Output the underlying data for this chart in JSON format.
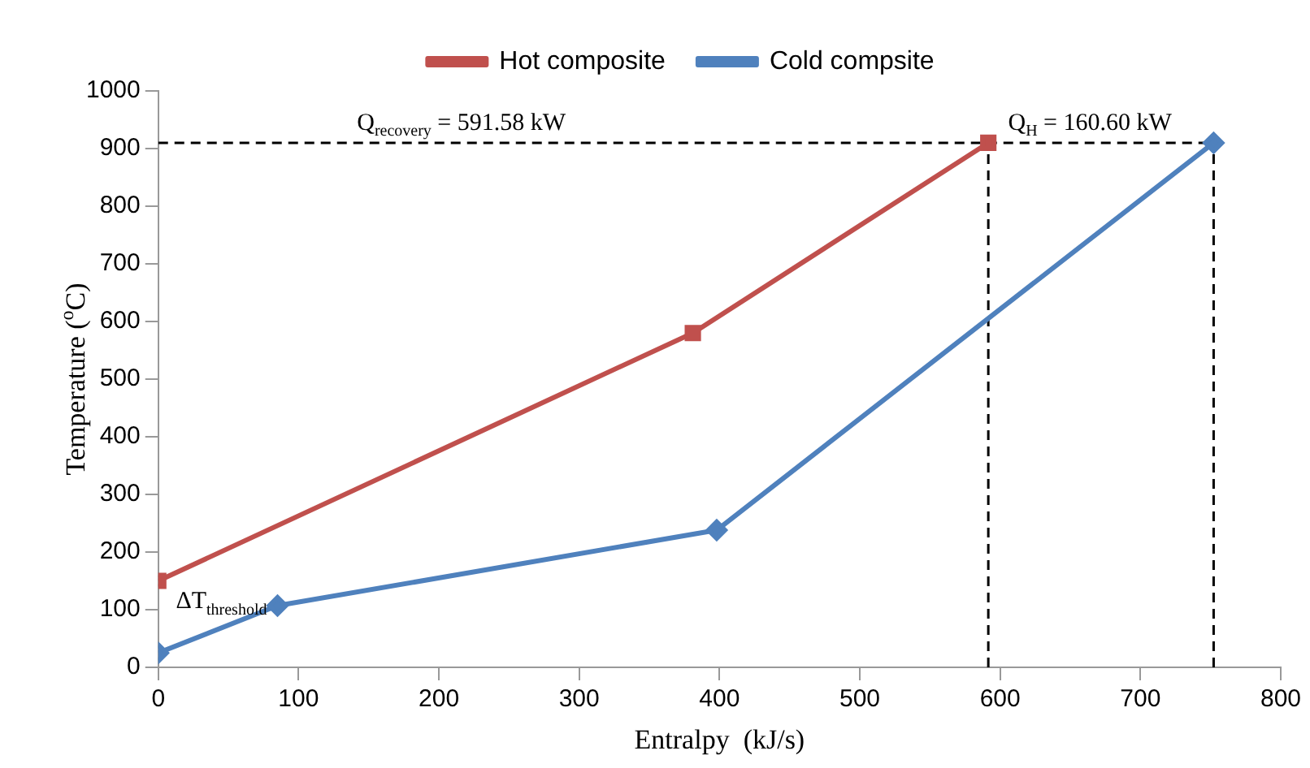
{
  "chart_data": {
    "type": "line",
    "xlabel": "Entralpy  (kJ/s)",
    "ylabel": "Temperature ($^{o}$C)",
    "xlim": [
      0,
      800
    ],
    "xticks": [
      0,
      100,
      200,
      300,
      400,
      500,
      600,
      700,
      800
    ],
    "ylim": [
      0,
      1000
    ],
    "yticks": [
      0,
      100,
      200,
      300,
      400,
      500,
      600,
      700,
      800,
      900,
      1000
    ],
    "legend": "top",
    "series": [
      {
        "name": "Hot composite",
        "color": "#c0504d",
        "marker": "square",
        "x": [
          0,
          381,
          591.58
        ],
        "values": [
          150,
          580,
          910
        ]
      },
      {
        "name": "Cold compsite",
        "color": "#4f81bd",
        "marker": "diamond",
        "x": [
          0,
          85,
          398,
          752.18
        ],
        "values": [
          25,
          107,
          238,
          910
        ]
      },
      {
        "color": "#000000",
        "marker": "none",
        "line_style": "dashed",
        "x": [
          0,
          752.18
        ],
        "values": [
          910,
          910
        ]
      },
      {
        "color": "#000000",
        "marker": "none",
        "line_style": "dashed",
        "x": [
          591.58,
          591.58
        ],
        "values": [
          0,
          910
        ]
      },
      {
        "color": "#000000",
        "marker": "none",
        "line_style": "dashed",
        "x": [
          752.18,
          752.18
        ],
        "values": [
          0,
          910
        ]
      }
    ],
    "annotations": [
      {
        "text": "Q$_{recovery}$ = 591.58 kW",
        "x": 216,
        "y": 910
      },
      {
        "text": "Q$_{H}$ = 160.60 kW",
        "x": 664,
        "y": 910
      },
      {
        "text": "ΔT$_{threshold}$",
        "x": 45,
        "y": 80
      }
    ]
  }
}
